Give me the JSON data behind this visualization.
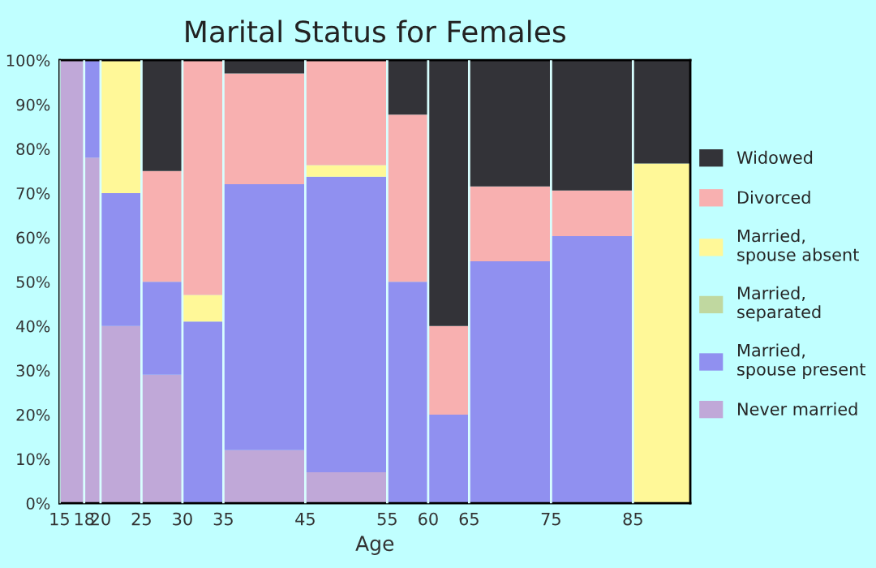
{
  "chart_data": {
    "type": "bar",
    "stacked": true,
    "title": "Marital Status for Females",
    "xlabel": "Age",
    "x": [
      16.5,
      19,
      22.5,
      27.5,
      32.5,
      40,
      50,
      57.5,
      62.5,
      70,
      80,
      88.5
    ],
    "xlim": [
      15,
      92
    ],
    "xticks": [
      15,
      18,
      20,
      25,
      30,
      35,
      45,
      55,
      60,
      65,
      75,
      85
    ],
    "ylim": [
      0,
      100
    ],
    "yticks": [
      {
        "value": 0,
        "label": "0%"
      },
      {
        "value": 10,
        "label": "10%"
      },
      {
        "value": 20,
        "label": "20%"
      },
      {
        "value": 30,
        "label": "30%"
      },
      {
        "value": 40,
        "label": "40%"
      },
      {
        "value": 50,
        "label": "50%"
      },
      {
        "value": 60,
        "label": "60%"
      },
      {
        "value": 70,
        "label": "70%"
      },
      {
        "value": 80,
        "label": "80%"
      },
      {
        "value": 90,
        "label": "90%"
      },
      {
        "value": 100,
        "label": "100%"
      }
    ],
    "legend": "right",
    "grid": "x",
    "series": [
      {
        "name": "Never married",
        "color": "#c0a8d8",
        "values": [
          100,
          78,
          40,
          29,
          0,
          12,
          7,
          0,
          0,
          0,
          0,
          0
        ]
      },
      {
        "name": "Married,\nspouse present",
        "color": "#9090f0",
        "values": [
          0,
          22,
          30,
          21,
          41,
          60,
          66.7,
          50,
          20,
          54.6,
          60.3,
          0
        ]
      },
      {
        "name": "Married,\nseparated",
        "color": "#c0d8a0",
        "values": [
          0,
          0,
          0,
          0,
          0,
          0,
          0,
          0,
          0,
          0,
          0,
          0
        ]
      },
      {
        "name": "Married,\nspouse absent",
        "color": "#fff898",
        "values": [
          0,
          0,
          30,
          0,
          6,
          0,
          2.6,
          0,
          0,
          0,
          0,
          76.7
        ]
      },
      {
        "name": "Divorced",
        "color": "#f8b0b0",
        "values": [
          0,
          0,
          0,
          25,
          53,
          25,
          23.7,
          37.7,
          20,
          16.9,
          10.3,
          0
        ]
      },
      {
        "name": "Widowed",
        "color": "#333338",
        "values": [
          0,
          0,
          0,
          25,
          0,
          3,
          0,
          12.3,
          60,
          28.5,
          29.4,
          23.3
        ]
      }
    ]
  }
}
